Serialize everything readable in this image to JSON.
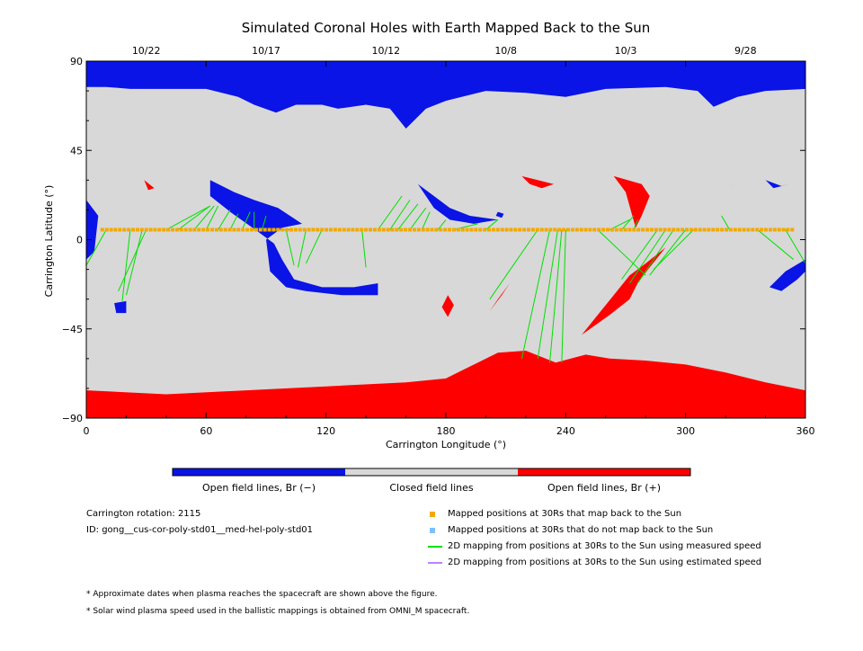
{
  "chart_data": {
    "type": "map",
    "title": "Simulated Coronal Holes with Earth Mapped Back to the Sun",
    "xlabel": "Carrington Longitude (°)",
    "ylabel": "Carrington Latitude (°)",
    "xlim": [
      0,
      360
    ],
    "ylim": [
      -90,
      90
    ],
    "x_ticks": [
      0,
      60,
      120,
      180,
      240,
      300,
      360
    ],
    "y_ticks": [
      90,
      45,
      0,
      -45,
      -90
    ],
    "y_tick_labels": [
      "90",
      "45",
      "0",
      "−45",
      "−90"
    ],
    "date_ticks": [
      {
        "label": "10/22",
        "lon": 30
      },
      {
        "label": "10/17",
        "lon": 90
      },
      {
        "label": "10/12",
        "lon": 150
      },
      {
        "label": "10/8",
        "lon": 210
      },
      {
        "label": "10/3",
        "lon": 270
      },
      {
        "label": "9/28",
        "lon": 330
      }
    ],
    "colors": {
      "open_negative": "#0a14e6",
      "closed": "#d8d8d8",
      "open_positive": "#ff0000",
      "mapped_point": "#f2a900",
      "unmapped_point": "#7cc0ff",
      "measured_line": "#00e000",
      "estimated_line": "#c080ff"
    },
    "colorbar": {
      "neg_label": "Open field lines, Br (−)",
      "closed_label": "Closed field lines",
      "pos_label": "Open field lines, Br (+)"
    },
    "info": {
      "rotation": "Carrington rotation: 2115",
      "model_id": "ID: gong__cus-cor-poly-std01__med-hel-poly-std01"
    },
    "legend": [
      {
        "label": "Mapped positions at 30Rs that map back to the Sun",
        "kind": "square",
        "color": "#f2a900"
      },
      {
        "label": "Mapped positions at 30Rs that do not map back to the Sun",
        "kind": "square",
        "color": "#7cc0ff"
      },
      {
        "label": "2D mapping from positions at 30Rs to the Sun using measured speed",
        "kind": "line",
        "color": "#00e000"
      },
      {
        "label": "2D mapping from positions at 30Rs to the Sun using estimated speed",
        "kind": "line",
        "color": "#c080ff"
      }
    ],
    "notes": [
      "* Approximate dates when plasma reaches the spacecraft are shown above the figure.",
      "* Solar wind plasma speed used in the ballistic mappings is obtained from OMNI_M spacecraft."
    ],
    "regions": {
      "negative": [
        [
          [
            0,
            90
          ],
          [
            360,
            90
          ],
          [
            360,
            76
          ],
          [
            340,
            75
          ],
          [
            326,
            72
          ],
          [
            314,
            67
          ],
          [
            306,
            75
          ],
          [
            290,
            77
          ],
          [
            260,
            76
          ],
          [
            240,
            72
          ],
          [
            220,
            74
          ],
          [
            200,
            75
          ],
          [
            180,
            70
          ],
          [
            170,
            66
          ],
          [
            160,
            56
          ],
          [
            152,
            66
          ],
          [
            140,
            68
          ],
          [
            126,
            66
          ],
          [
            118,
            68
          ],
          [
            105,
            68
          ],
          [
            95,
            64
          ],
          [
            84,
            68
          ],
          [
            76,
            72
          ],
          [
            60,
            76
          ],
          [
            40,
            76
          ],
          [
            22,
            76
          ],
          [
            10,
            77
          ],
          [
            0,
            77
          ]
        ],
        [
          [
            62,
            30
          ],
          [
            74,
            24
          ],
          [
            84,
            20
          ],
          [
            96,
            16
          ],
          [
            108,
            8
          ],
          [
            98,
            6
          ],
          [
            90,
            0
          ],
          [
            92,
            -16
          ],
          [
            100,
            -24
          ],
          [
            110,
            -26
          ],
          [
            128,
            -28
          ],
          [
            146,
            -28
          ],
          [
            146,
            -22
          ],
          [
            134,
            -24
          ],
          [
            118,
            -24
          ],
          [
            104,
            -20
          ],
          [
            98,
            -10
          ],
          [
            94,
            -2
          ],
          [
            86,
            4
          ],
          [
            72,
            14
          ],
          [
            62,
            22
          ]
        ],
        [
          [
            166,
            28
          ],
          [
            174,
            22
          ],
          [
            182,
            16
          ],
          [
            192,
            12
          ],
          [
            206,
            10
          ],
          [
            194,
            8
          ],
          [
            182,
            10
          ],
          [
            174,
            16
          ]
        ],
        [
          [
            0,
            20
          ],
          [
            6,
            12
          ],
          [
            4,
            -6
          ],
          [
            0,
            -10
          ]
        ],
        [
          [
            360,
            -10
          ],
          [
            350,
            -16
          ],
          [
            342,
            -24
          ],
          [
            348,
            -26
          ],
          [
            356,
            -20
          ],
          [
            360,
            -16
          ]
        ],
        [
          [
            340,
            30
          ],
          [
            348,
            27
          ],
          [
            352,
            28
          ],
          [
            344,
            26
          ]
        ],
        [
          [
            14,
            -32
          ],
          [
            20,
            -31
          ],
          [
            20,
            -37
          ],
          [
            15,
            -37
          ]
        ],
        [
          [
            205,
            12
          ],
          [
            208,
            11
          ],
          [
            209,
            13
          ],
          [
            206,
            14
          ]
        ]
      ],
      "positive": [
        [
          [
            0,
            -76
          ],
          [
            40,
            -78
          ],
          [
            80,
            -76
          ],
          [
            120,
            -74
          ],
          [
            160,
            -72
          ],
          [
            180,
            -70
          ],
          [
            196,
            -62
          ],
          [
            206,
            -57
          ],
          [
            220,
            -56
          ],
          [
            235,
            -62
          ],
          [
            250,
            -58
          ],
          [
            262,
            -60
          ],
          [
            280,
            -61
          ],
          [
            300,
            -63
          ],
          [
            320,
            -67
          ],
          [
            340,
            -72
          ],
          [
            360,
            -76
          ],
          [
            360,
            -90
          ],
          [
            0,
            -90
          ]
        ],
        [
          [
            248,
            -48
          ],
          [
            256,
            -38
          ],
          [
            264,
            -28
          ],
          [
            272,
            -18
          ],
          [
            280,
            -12
          ],
          [
            290,
            -4
          ],
          [
            282,
            -14
          ],
          [
            276,
            -22
          ],
          [
            272,
            -30
          ],
          [
            262,
            -38
          ]
        ],
        [
          [
            264,
            32
          ],
          [
            270,
            24
          ],
          [
            275,
            6
          ],
          [
            278,
            12
          ],
          [
            282,
            22
          ],
          [
            278,
            28
          ]
        ],
        [
          [
            202,
            -36
          ],
          [
            206,
            -30
          ],
          [
            212,
            -22
          ],
          [
            208,
            -28
          ]
        ],
        [
          [
            181,
            -28
          ],
          [
            184,
            -33
          ],
          [
            181,
            -39
          ],
          [
            178,
            -34
          ]
        ],
        [
          [
            218,
            32
          ],
          [
            226,
            30
          ],
          [
            234,
            28
          ],
          [
            228,
            26
          ],
          [
            222,
            28
          ]
        ],
        [
          [
            29,
            30
          ],
          [
            34,
            26
          ],
          [
            31,
            25
          ]
        ],
        [
          [
            320,
            30
          ],
          [
            324,
            26
          ],
          [
            322,
            28
          ]
        ]
      ]
    },
    "mapped_lon_range": [
      8,
      355
    ],
    "mapped_lat": 5,
    "mapped_spacing": 2.2,
    "mapping_lines": [
      [
        [
          10,
          5
        ],
        [
          0,
          -13
        ]
      ],
      [
        [
          22,
          5
        ],
        [
          18,
          -31
        ]
      ],
      [
        [
          28,
          5
        ],
        [
          20,
          -28
        ]
      ],
      [
        [
          30,
          5
        ],
        [
          16,
          -26
        ]
      ],
      [
        [
          40,
          5
        ],
        [
          62,
          17
        ]
      ],
      [
        [
          46,
          5
        ],
        [
          62,
          17
        ]
      ],
      [
        [
          54,
          5
        ],
        [
          64,
          17
        ]
      ],
      [
        [
          60,
          5
        ],
        [
          66,
          17
        ]
      ],
      [
        [
          66,
          5
        ],
        [
          72,
          15
        ]
      ],
      [
        [
          72,
          5
        ],
        [
          76,
          13
        ]
      ],
      [
        [
          78,
          5
        ],
        [
          82,
          14
        ]
      ],
      [
        [
          84,
          5
        ],
        [
          84,
          14
        ]
      ],
      [
        [
          88,
          5
        ],
        [
          90,
          12
        ]
      ],
      [
        [
          94,
          5
        ],
        [
          102,
          5
        ]
      ],
      [
        [
          100,
          5
        ],
        [
          104,
          -13
        ]
      ],
      [
        [
          110,
          5
        ],
        [
          106,
          -14
        ]
      ],
      [
        [
          118,
          5
        ],
        [
          110,
          -12
        ]
      ],
      [
        [
          138,
          5
        ],
        [
          140,
          -14
        ]
      ],
      [
        [
          146,
          5
        ],
        [
          158,
          22
        ]
      ],
      [
        [
          152,
          5
        ],
        [
          162,
          20
        ]
      ],
      [
        [
          156,
          5
        ],
        [
          166,
          18
        ]
      ],
      [
        [
          162,
          5
        ],
        [
          170,
          16
        ]
      ],
      [
        [
          168,
          5
        ],
        [
          172,
          14
        ]
      ],
      [
        [
          176,
          5
        ],
        [
          180,
          10
        ]
      ],
      [
        [
          184,
          5
        ],
        [
          196,
          8
        ]
      ],
      [
        [
          200,
          5
        ],
        [
          206,
          10
        ]
      ],
      [
        [
          226,
          5
        ],
        [
          202,
          -30
        ]
      ],
      [
        [
          232,
          5
        ],
        [
          218,
          -60
        ]
      ],
      [
        [
          236,
          5
        ],
        [
          226,
          -60
        ]
      ],
      [
        [
          238,
          5
        ],
        [
          232,
          -62
        ]
      ],
      [
        [
          240,
          5
        ],
        [
          238,
          -62
        ]
      ],
      [
        [
          256,
          5
        ],
        [
          280,
          -18
        ]
      ],
      [
        [
          262,
          5
        ],
        [
          272,
          10
        ]
      ],
      [
        [
          268,
          5
        ],
        [
          274,
          12
        ]
      ],
      [
        [
          274,
          5
        ],
        [
          276,
          10
        ]
      ],
      [
        [
          286,
          5
        ],
        [
          268,
          -20
        ]
      ],
      [
        [
          290,
          5
        ],
        [
          272,
          -22
        ]
      ],
      [
        [
          294,
          5
        ],
        [
          276,
          -22
        ]
      ],
      [
        [
          300,
          5
        ],
        [
          282,
          -18
        ]
      ],
      [
        [
          304,
          5
        ],
        [
          284,
          -15
        ]
      ],
      [
        [
          322,
          5
        ],
        [
          318,
          12
        ]
      ],
      [
        [
          336,
          5
        ],
        [
          354,
          -10
        ]
      ],
      [
        [
          350,
          5
        ],
        [
          360,
          -12
        ]
      ]
    ]
  }
}
